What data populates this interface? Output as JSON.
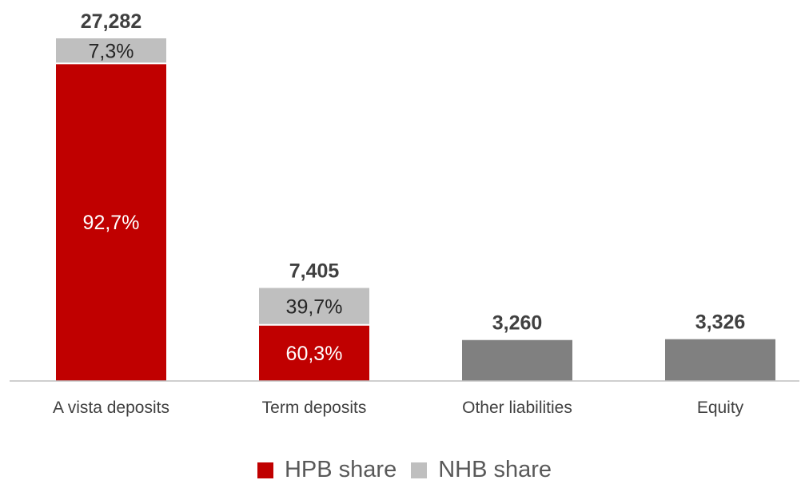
{
  "chart_data": {
    "type": "bar",
    "stacked": true,
    "title": "",
    "xlabel": "",
    "ylabel": "",
    "ylim": [
      0,
      27282
    ],
    "grid": false,
    "legend_position": "bottom",
    "categories": [
      "A vista deposits",
      "Term deposits",
      "Other liabilities",
      "Equity"
    ],
    "totals": [
      27282,
      7405,
      3260,
      3326
    ],
    "total_labels": [
      "27,282",
      "7,405",
      "3,260",
      "3,326"
    ],
    "bars": [
      {
        "segments": [
          {
            "series": "HPB share",
            "value": 92.7,
            "label": "92,7%",
            "color": "#c00000"
          },
          {
            "series": "NHB share",
            "value": 7.3,
            "label": "7,3%",
            "color": "#bfbfbf"
          }
        ]
      },
      {
        "segments": [
          {
            "series": "HPB share",
            "value": 60.3,
            "label": "60,3%",
            "color": "#c00000"
          },
          {
            "series": "NHB share",
            "value": 39.7,
            "label": "39,7%",
            "color": "#bfbfbf"
          }
        ]
      },
      {
        "segments": [
          {
            "series": "",
            "value": 100,
            "label": "",
            "color": "#808080"
          }
        ]
      },
      {
        "segments": [
          {
            "series": "",
            "value": 100,
            "label": "",
            "color": "#808080"
          }
        ]
      }
    ],
    "legend": [
      {
        "name": "HPB share",
        "color": "#c00000"
      },
      {
        "name": "NHB share",
        "color": "#bfbfbf"
      }
    ]
  }
}
